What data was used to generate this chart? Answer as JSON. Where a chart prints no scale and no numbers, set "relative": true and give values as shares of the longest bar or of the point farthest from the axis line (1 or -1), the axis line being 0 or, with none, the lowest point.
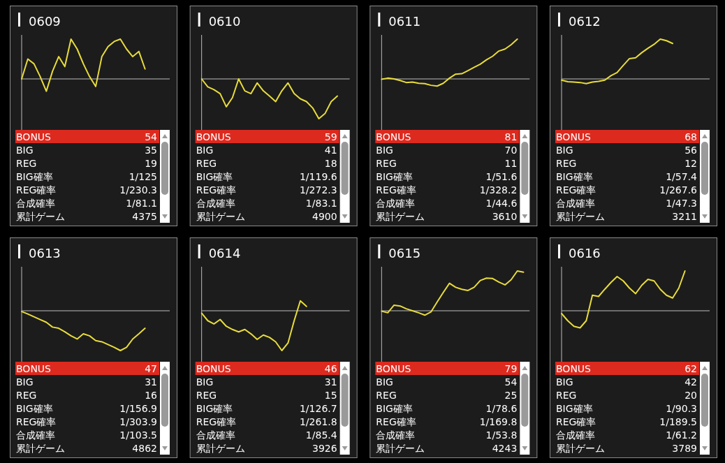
{
  "chart_data": [
    {
      "type": "line",
      "title": "0609",
      "relative": true,
      "categories": [
        null,
        null,
        null,
        null,
        null,
        null,
        null,
        null,
        null,
        null,
        null,
        null,
        null,
        null,
        null,
        null,
        null,
        null,
        null,
        null,
        null,
        null,
        null,
        null,
        null
      ],
      "series": [
        {
          "color": "#e8dc3c",
          "values": [
            0,
            0.5,
            0.38,
            0.06,
            -0.31,
            0.19,
            0.56,
            0.31,
            1,
            0.75,
            0.38,
            0.06,
            -0.19,
            0.56,
            0.81,
            0.94,
            1,
            0.75,
            0.56,
            0.69,
            0.25,
            null,
            null,
            null,
            null
          ]
        }
      ]
    },
    {
      "type": "other",
      "categories": [
        "BONUS",
        "BIG",
        "REG",
        "BIG確率",
        "REG確率",
        "合成確率",
        "累計ゲーム"
      ],
      "value_labels": [
        "54",
        "35",
        "19",
        "1/125",
        "1/230.3",
        "1/81.1",
        "4375"
      ],
      "colors": [
        "#dd2a1f",
        null,
        null,
        null,
        null,
        null,
        null
      ]
    },
    {
      "type": "line",
      "title": "0610",
      "relative": true,
      "categories": [
        null,
        null,
        null,
        null,
        null,
        null,
        null,
        null,
        null,
        null,
        null,
        null,
        null,
        null,
        null,
        null,
        null,
        null,
        null,
        null,
        null,
        null,
        null,
        null,
        null
      ],
      "series": [
        {
          "color": "#e8dc3c",
          "values": [
            0,
            -0.2,
            -0.27,
            -0.37,
            -0.7,
            -0.47,
            0,
            -0.3,
            -0.37,
            -0.1,
            -0.3,
            -0.43,
            -0.57,
            -0.3,
            -0.1,
            -0.37,
            -0.5,
            -0.57,
            -0.73,
            -1,
            -0.87,
            -0.57,
            -0.43,
            null,
            null
          ]
        }
      ]
    },
    {
      "type": "other",
      "categories": [
        "BONUS",
        "BIG",
        "REG",
        "BIG確率",
        "REG確率",
        "合成確率",
        "累計ゲーム"
      ],
      "value_labels": [
        "59",
        "41",
        "18",
        "1/119.6",
        "1/272.3",
        "1/83.1",
        "4900"
      ],
      "colors": [
        "#dd2a1f",
        null,
        null,
        null,
        null,
        null,
        null
      ]
    },
    {
      "type": "line",
      "title": "0611",
      "relative": true,
      "categories": [
        null,
        null,
        null,
        null,
        null,
        null,
        null,
        null,
        null,
        null,
        null,
        null,
        null,
        null,
        null,
        null,
        null,
        null,
        null,
        null,
        null,
        null,
        null,
        null,
        null
      ],
      "series": [
        {
          "color": "#e8dc3c",
          "values": [
            -0.01,
            0.02,
            0,
            -0.04,
            -0.09,
            -0.08,
            -0.11,
            -0.12,
            -0.16,
            -0.18,
            -0.11,
            0.02,
            0.12,
            0.13,
            0.21,
            0.29,
            0.37,
            0.48,
            0.57,
            0.7,
            0.75,
            0.86,
            1,
            null,
            null
          ]
        }
      ]
    },
    {
      "type": "other",
      "categories": [
        "BONUS",
        "BIG",
        "REG",
        "BIG確率",
        "REG確率",
        "合成確率",
        "累計ゲーム"
      ],
      "value_labels": [
        "81",
        "70",
        "11",
        "1/51.6",
        "1/328.2",
        "1/44.6",
        "3610"
      ],
      "colors": [
        "#dd2a1f",
        null,
        null,
        null,
        null,
        null,
        null
      ]
    },
    {
      "type": "line",
      "title": "0612",
      "relative": true,
      "categories": [
        null,
        null,
        null,
        null,
        null,
        null,
        null,
        null,
        null,
        null,
        null,
        null,
        null,
        null,
        null,
        null,
        null,
        null,
        null,
        null,
        null,
        null,
        null,
        null,
        null
      ],
      "series": [
        {
          "color": "#e8dc3c",
          "values": [
            -0.03,
            -0.07,
            -0.08,
            -0.09,
            -0.12,
            -0.08,
            -0.06,
            -0.03,
            0.08,
            0.16,
            0.34,
            0.51,
            0.53,
            0.66,
            0.77,
            0.87,
            1,
            0.96,
            0.89,
            null,
            null,
            null,
            null,
            null,
            null
          ]
        }
      ]
    },
    {
      "type": "other",
      "categories": [
        "BONUS",
        "BIG",
        "REG",
        "BIG確率",
        "REG確率",
        "合成確率",
        "累計ゲーム"
      ],
      "value_labels": [
        "68",
        "56",
        "12",
        "1/57.4",
        "1/267.6",
        "1/47.3",
        "3211"
      ],
      "colors": [
        "#dd2a1f",
        null,
        null,
        null,
        null,
        null,
        null
      ]
    },
    {
      "type": "line",
      "title": "0613",
      "relative": true,
      "categories": [
        null,
        null,
        null,
        null,
        null,
        null,
        null,
        null,
        null,
        null,
        null,
        null,
        null,
        null,
        null,
        null,
        null,
        null,
        null,
        null,
        null,
        null,
        null,
        null,
        null
      ],
      "series": [
        {
          "color": "#e8dc3c",
          "values": [
            -0.02,
            -0.08,
            -0.15,
            -0.22,
            -0.29,
            -0.41,
            -0.44,
            -0.53,
            -0.63,
            -0.71,
            -0.58,
            -0.63,
            -0.75,
            -0.78,
            -0.85,
            -0.92,
            -1,
            -0.92,
            -0.71,
            -0.58,
            -0.44,
            null,
            null,
            null,
            null
          ]
        }
      ]
    },
    {
      "type": "other",
      "categories": [
        "BONUS",
        "BIG",
        "REG",
        "BIG確率",
        "REG確率",
        "合成確率",
        "累計ゲーム"
      ],
      "value_labels": [
        "47",
        "31",
        "16",
        "1/156.9",
        "1/303.9",
        "1/103.5",
        "4862"
      ],
      "colors": [
        "#dd2a1f",
        null,
        null,
        null,
        null,
        null,
        null
      ]
    },
    {
      "type": "line",
      "title": "0614",
      "relative": true,
      "categories": [
        null,
        null,
        null,
        null,
        null,
        null,
        null,
        null,
        null,
        null,
        null,
        null,
        null,
        null,
        null,
        null,
        null,
        null,
        null,
        null,
        null,
        null,
        null,
        null,
        null
      ],
      "series": [
        {
          "color": "#e8dc3c",
          "values": [
            -0.06,
            -0.25,
            -0.33,
            -0.22,
            -0.39,
            -0.47,
            -0.53,
            -0.47,
            -0.58,
            -0.72,
            -0.61,
            -0.67,
            -0.78,
            -1,
            -0.81,
            -0.25,
            0.25,
            0.11,
            null,
            null,
            null,
            null,
            null,
            null,
            null
          ]
        }
      ]
    },
    {
      "type": "other",
      "categories": [
        "BONUS",
        "BIG",
        "REG",
        "BIG確率",
        "REG確率",
        "合成確率",
        "累計ゲーム"
      ],
      "value_labels": [
        "46",
        "31",
        "15",
        "1/126.7",
        "1/261.8",
        "1/85.4",
        "3926"
      ],
      "colors": [
        "#dd2a1f",
        null,
        null,
        null,
        null,
        null,
        null
      ]
    },
    {
      "type": "line",
      "title": "0615",
      "relative": true,
      "categories": [
        null,
        null,
        null,
        null,
        null,
        null,
        null,
        null,
        null,
        null,
        null,
        null,
        null,
        null,
        null,
        null,
        null,
        null,
        null,
        null,
        null,
        null,
        null,
        null,
        null
      ],
      "series": [
        {
          "color": "#e8dc3c",
          "values": [
            -0.01,
            -0.05,
            0.14,
            0.12,
            0.05,
            0,
            -0.05,
            -0.11,
            -0.03,
            0.22,
            0.46,
            0.69,
            0.59,
            0.54,
            0.51,
            0.59,
            0.76,
            0.82,
            0.81,
            0.72,
            0.65,
            0.78,
            1,
            0.97,
            null
          ]
        }
      ]
    },
    {
      "type": "other",
      "categories": [
        "BONUS",
        "BIG",
        "REG",
        "BIG確率",
        "REG確率",
        "合成確率",
        "累計ゲーム"
      ],
      "value_labels": [
        "79",
        "54",
        "25",
        "1/78.6",
        "1/169.8",
        "1/53.8",
        "4243"
      ],
      "colors": [
        "#dd2a1f",
        null,
        null,
        null,
        null,
        null,
        null
      ]
    },
    {
      "type": "line",
      "title": "0616",
      "relative": true,
      "categories": [
        null,
        null,
        null,
        null,
        null,
        null,
        null,
        null,
        null,
        null,
        null,
        null,
        null,
        null,
        null,
        null,
        null,
        null,
        null,
        null,
        null,
        null,
        null,
        null,
        null
      ],
      "series": [
        {
          "color": "#e8dc3c",
          "values": [
            -0.07,
            -0.25,
            -0.39,
            -0.43,
            -0.25,
            0.39,
            0.36,
            0.54,
            0.71,
            0.86,
            0.75,
            0.57,
            0.43,
            0.64,
            0.79,
            0.75,
            0.54,
            0.39,
            0.32,
            0.57,
            1,
            null,
            null,
            null,
            null
          ]
        }
      ]
    },
    {
      "type": "other",
      "categories": [
        "BONUS",
        "BIG",
        "REG",
        "BIG確率",
        "REG確率",
        "合成確率",
        "累計ゲーム"
      ],
      "value_labels": [
        "62",
        "42",
        "20",
        "1/90.3",
        "1/189.5",
        "1/61.2",
        "3789"
      ],
      "colors": [
        "#dd2a1f",
        null,
        null,
        null,
        null,
        null,
        null
      ]
    }
  ]
}
